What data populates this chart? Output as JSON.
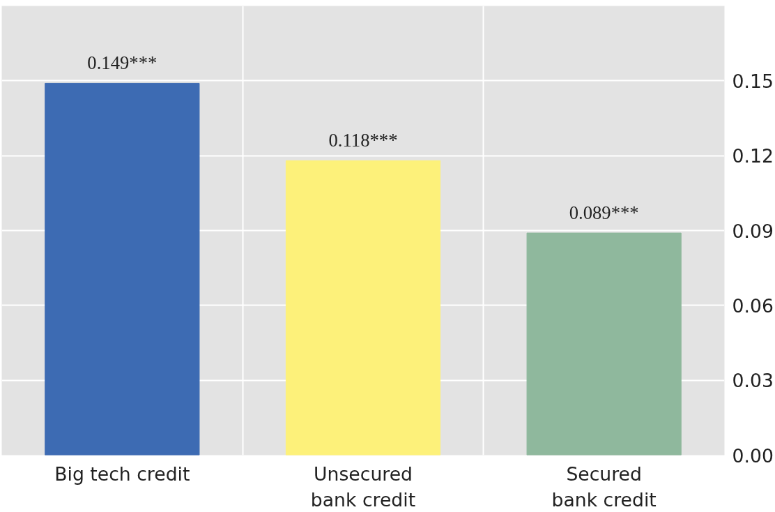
{
  "chart_data": {
    "type": "bar",
    "categories": [
      "Big tech credit",
      "Unsecured\nbank credit",
      "Secured\nbank credit"
    ],
    "values": [
      0.149,
      0.118,
      0.089
    ],
    "colors": [
      "#3d6bb3",
      "#fdf17a",
      "#8fb89d"
    ],
    "value_labels": [
      "0.149***",
      "0.118***",
      "0.089***"
    ],
    "ylim": [
      0,
      0.18
    ],
    "yticks": [
      {
        "value": 0,
        "label": "0.00"
      },
      {
        "value": 0.03,
        "label": "0.03"
      },
      {
        "value": 0.06,
        "label": "0.06"
      },
      {
        "value": 0.09,
        "label": "0.09"
      },
      {
        "value": 0.12,
        "label": "0.12"
      },
      {
        "value": 0.15,
        "label": "0.15"
      }
    ],
    "grid": true
  }
}
